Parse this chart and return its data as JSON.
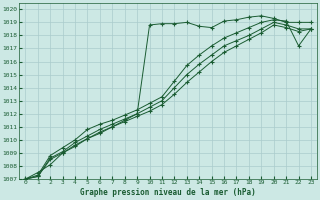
{
  "title": "Graphe pression niveau de la mer (hPa)",
  "bg_color": "#cce8e4",
  "grid_color": "#aacccc",
  "line_color": "#1a5c32",
  "xlim": [
    -0.5,
    23.5
  ],
  "ylim": [
    1007,
    1020.5
  ],
  "xticks": [
    0,
    1,
    2,
    3,
    4,
    5,
    6,
    7,
    8,
    9,
    10,
    11,
    12,
    13,
    14,
    15,
    16,
    17,
    18,
    19,
    20,
    21,
    22,
    23
  ],
  "yticks": [
    1007,
    1008,
    1009,
    1010,
    1011,
    1012,
    1013,
    1014,
    1015,
    1016,
    1017,
    1018,
    1019,
    1020
  ],
  "series": [
    [
      1007.0,
      1007.5,
      1008.1,
      1009.0,
      1009.5,
      1010.1,
      1010.6,
      1011.0,
      1011.5,
      1012.0,
      1018.8,
      1018.9,
      1018.9,
      1019.0,
      1018.7,
      1018.6,
      1019.1,
      1019.2,
      1019.4,
      1019.5,
      1019.3,
      1019.0,
      1019.0,
      1019.0
    ],
    [
      1007.0,
      1007.3,
      1008.8,
      1009.4,
      1010.0,
      1010.8,
      1011.2,
      1011.5,
      1011.9,
      1012.3,
      1012.8,
      1013.3,
      1014.5,
      1015.7,
      1016.5,
      1017.2,
      1017.8,
      1018.2,
      1018.6,
      1019.0,
      1019.2,
      1019.1,
      1017.2,
      1018.5
    ],
    [
      1007.0,
      1007.2,
      1008.6,
      1009.1,
      1009.8,
      1010.3,
      1010.8,
      1011.2,
      1011.6,
      1012.0,
      1012.5,
      1013.0,
      1014.0,
      1015.0,
      1015.8,
      1016.5,
      1017.2,
      1017.6,
      1018.0,
      1018.5,
      1019.0,
      1018.8,
      1018.5,
      1018.5
    ],
    [
      1007.0,
      1007.2,
      1008.5,
      1009.0,
      1009.6,
      1010.1,
      1010.5,
      1011.0,
      1011.4,
      1011.8,
      1012.2,
      1012.7,
      1013.5,
      1014.4,
      1015.2,
      1016.0,
      1016.7,
      1017.2,
      1017.7,
      1018.2,
      1018.8,
      1018.6,
      1018.3,
      1018.5
    ]
  ]
}
